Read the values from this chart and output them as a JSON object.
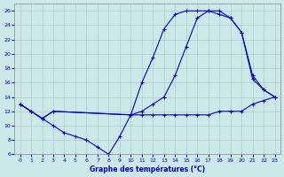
{
  "title": "Graphe des températures (°C)",
  "bg_color": "#cce8e8",
  "grid_color": "#aacccc",
  "line_color": "#0000cc",
  "xlim": [
    -0.5,
    23.5
  ],
  "ylim": [
    6,
    27
  ],
  "xticks": [
    0,
    1,
    2,
    3,
    4,
    5,
    6,
    7,
    8,
    9,
    10,
    11,
    12,
    13,
    14,
    15,
    16,
    17,
    18,
    19,
    20,
    21,
    22,
    23
  ],
  "yticks": [
    6,
    8,
    10,
    12,
    14,
    16,
    18,
    20,
    22,
    24,
    26
  ],
  "curve_min_x": [
    0,
    1,
    2,
    3,
    4,
    5,
    6,
    7,
    8,
    9,
    10,
    11,
    12,
    13,
    14,
    15,
    16,
    17,
    18,
    19,
    20,
    21,
    22,
    23
  ],
  "curve_min_y": [
    13,
    12,
    11,
    10,
    9,
    8.5,
    8,
    7,
    6,
    8.5,
    11.5,
    11.5,
    11.5,
    11.5,
    11.5,
    11.5,
    11.5,
    11.5,
    12,
    12,
    12,
    13,
    13.5,
    14
  ],
  "curve_max_x": [
    0,
    1,
    2,
    3,
    10,
    11,
    12,
    13,
    14,
    15,
    16,
    17,
    18,
    19,
    20,
    21,
    22,
    23
  ],
  "curve_max_y": [
    13,
    12,
    11,
    12,
    11.5,
    16,
    19.5,
    23.5,
    25.5,
    26,
    26,
    26,
    26,
    25,
    23,
    16.5,
    15,
    14
  ],
  "curve_avg_x": [
    0,
    1,
    2,
    3,
    10,
    11,
    12,
    13,
    14,
    15,
    16,
    17,
    18,
    19,
    20,
    21,
    22,
    23
  ],
  "curve_avg_y": [
    13,
    12,
    11,
    12,
    11.5,
    12,
    13,
    14,
    17,
    21,
    25,
    26,
    25.5,
    25,
    23,
    17,
    15,
    14
  ]
}
